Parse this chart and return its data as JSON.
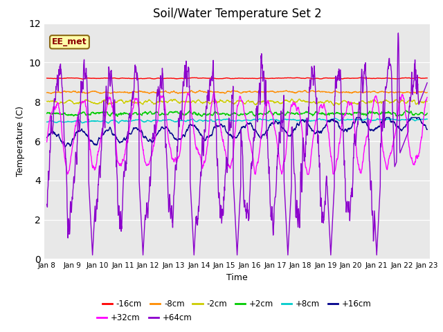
{
  "title": "Soil/Water Temperature Set 2",
  "xlabel": "Time",
  "ylabel": "Temperature (C)",
  "ylim": [
    0,
    12
  ],
  "yticks": [
    0,
    2,
    4,
    6,
    8,
    10,
    12
  ],
  "n_points": 1500,
  "series": [
    {
      "label": "-16cm",
      "color": "#ff0000"
    },
    {
      "label": "-8cm",
      "color": "#ff8c00"
    },
    {
      "label": "-2cm",
      "color": "#cccc00"
    },
    {
      "label": "+2cm",
      "color": "#00cc00"
    },
    {
      "label": "+8cm",
      "color": "#00cccc"
    },
    {
      "label": "+16cm",
      "color": "#00008b"
    },
    {
      "label": "+32cm",
      "color": "#ff00ff"
    },
    {
      "label": "+64cm",
      "color": "#8b00cc"
    }
  ],
  "xtick_labels": [
    "Jan 8",
    "Jan 9",
    "Jan 10",
    "Jan 11",
    "Jan 12",
    "Jan 13",
    "Jan 14",
    "Jan 15",
    "Jan 16",
    "Jan 17",
    "Jan 18",
    "Jan 19",
    "Jan 20",
    "Jan 21",
    "Jan 22",
    "Jan 23"
  ],
  "annotation_text": "EE_met",
  "bg_color": "#e8e8e8",
  "linewidth": 1.0
}
